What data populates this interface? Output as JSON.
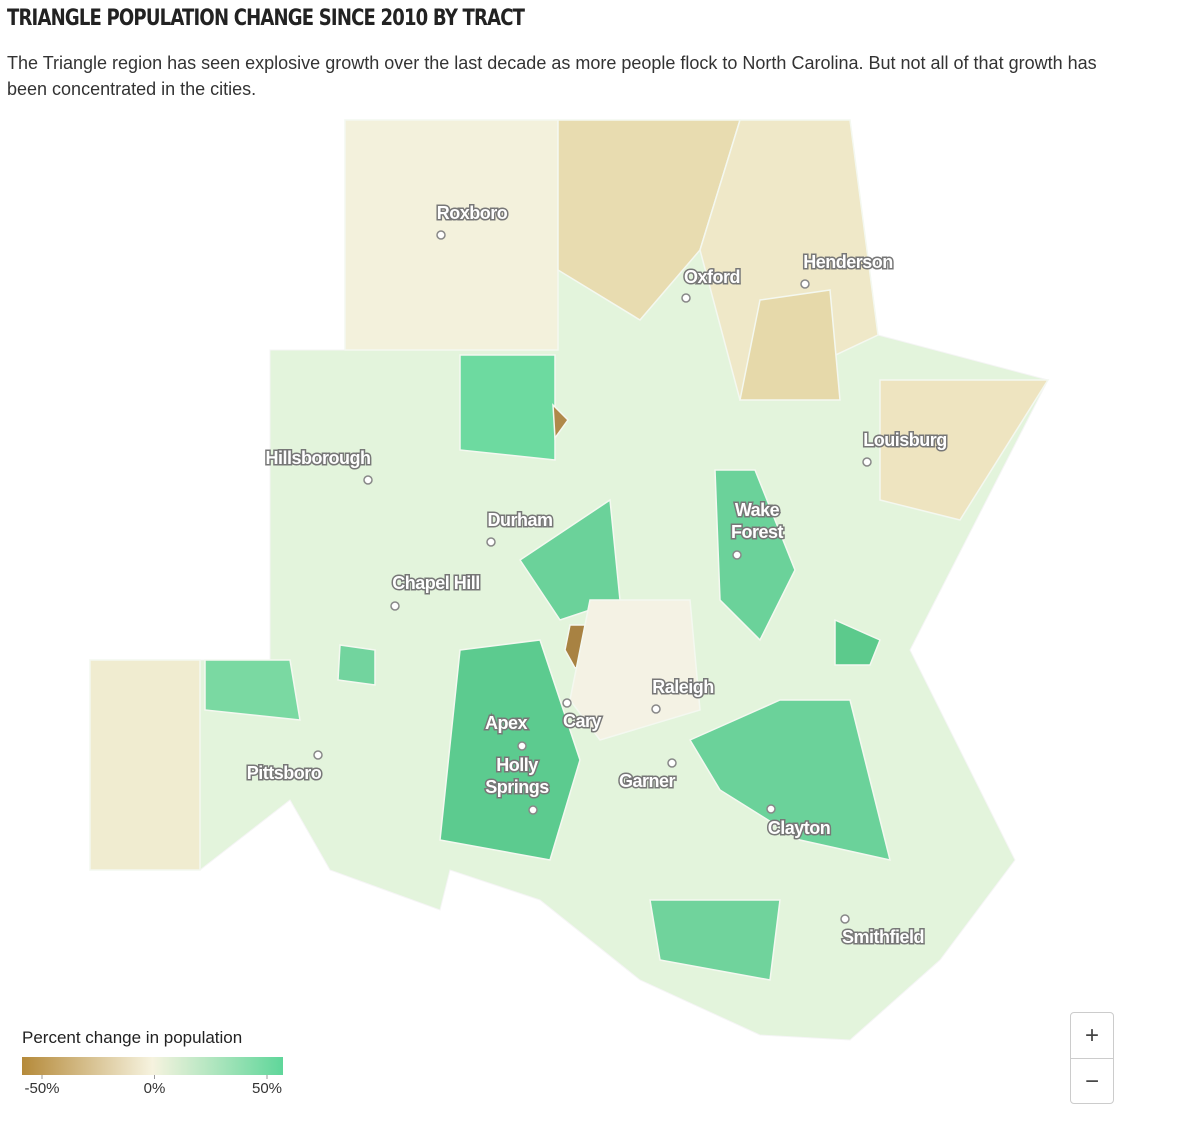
{
  "header": {
    "title": "TRIANGLE POPULATION CHANGE SINCE 2010 BY TRACT",
    "subtitle": "The Triangle region has seen explosive growth over the last decade as more people flock to North Carolina. But not all of that growth has been concentrated in the cities."
  },
  "cities": [
    {
      "lines": [
        "Roxboro"
      ]
    },
    {
      "lines": [
        "Oxford"
      ]
    },
    {
      "lines": [
        "Henderson"
      ]
    },
    {
      "lines": [
        "Louisburg"
      ]
    },
    {
      "lines": [
        "Hillsborough"
      ]
    },
    {
      "lines": [
        "Durham"
      ]
    },
    {
      "lines": [
        "Wake",
        "Forest"
      ]
    },
    {
      "lines": [
        "Chapel Hill"
      ]
    },
    {
      "lines": [
        "Raleigh"
      ]
    },
    {
      "lines": [
        "Apex"
      ]
    },
    {
      "lines": [
        "Cary"
      ]
    },
    {
      "lines": [
        "Holly",
        "Springs"
      ]
    },
    {
      "lines": [
        "Pittsboro"
      ]
    },
    {
      "lines": [
        "Garner"
      ]
    },
    {
      "lines": [
        "Clayton"
      ]
    },
    {
      "lines": [
        "Smithfield"
      ]
    }
  ],
  "legend": {
    "title": "Percent change in population",
    "colors": [
      "#b58a3a",
      "#f6f3df",
      "#5fd69a"
    ],
    "ticks": [
      {
        "value": -50,
        "label": "-50%"
      },
      {
        "value": 0,
        "label": "0%"
      },
      {
        "value": 50,
        "label": "50%"
      }
    ]
  },
  "zoom": {
    "in": "+",
    "out": "−"
  }
}
